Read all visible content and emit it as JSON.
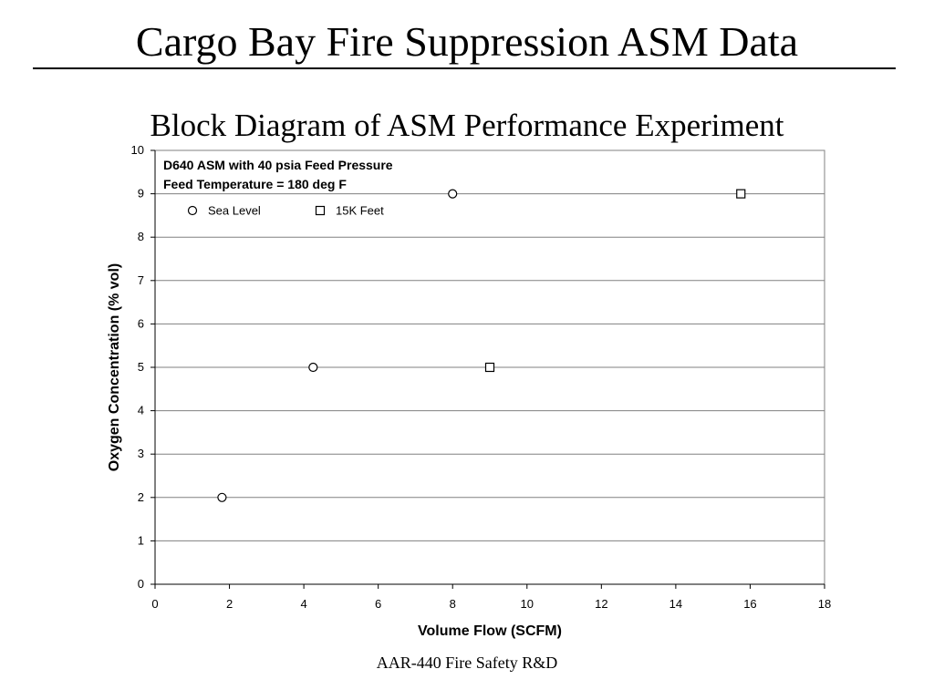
{
  "slide": {
    "title": "Cargo Bay Fire Suppression ASM Data",
    "subtitle": "Block Diagram of ASM Performance Experiment",
    "footer": "AAR-440 Fire Safety R&D"
  },
  "chart_data": {
    "type": "scatter",
    "title": "",
    "xlabel": "Volume Flow (SCFM)",
    "ylabel": "Oxygen Concentration (% vol)",
    "xlim": [
      0,
      18
    ],
    "ylim": [
      0,
      10
    ],
    "xticks": [
      0,
      2,
      4,
      6,
      8,
      10,
      12,
      14,
      16,
      18
    ],
    "yticks": [
      0,
      1,
      2,
      3,
      4,
      5,
      6,
      7,
      8,
      9,
      10
    ],
    "grid": "horizontal",
    "legend_position": "top-left",
    "annotations": [
      "D640 ASM with 40 psia Feed Pressure",
      "Feed Temperature = 180 deg F"
    ],
    "series": [
      {
        "name": "Sea Level",
        "marker": "circle",
        "points": [
          {
            "x": 1.8,
            "y": 2
          },
          {
            "x": 4.25,
            "y": 5
          },
          {
            "x": 8.0,
            "y": 9
          }
        ]
      },
      {
        "name": "15K Feet",
        "marker": "square",
        "points": [
          {
            "x": 9.0,
            "y": 5
          },
          {
            "x": 15.75,
            "y": 9
          }
        ]
      }
    ]
  }
}
